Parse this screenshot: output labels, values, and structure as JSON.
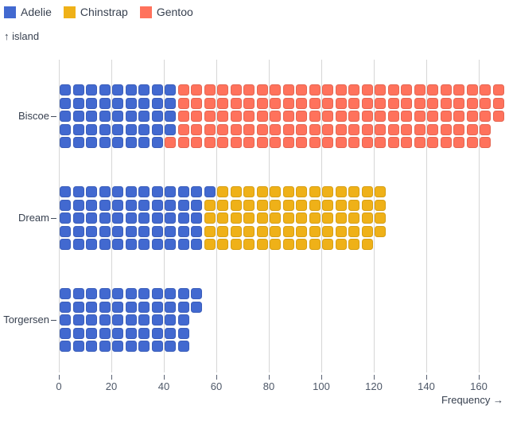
{
  "legend": {
    "items": [
      {
        "label": "Adelie",
        "color": "#4269d0"
      },
      {
        "label": "Chinstrap",
        "color": "#efb118"
      },
      {
        "label": "Gentoo",
        "color": "#ff725c"
      }
    ]
  },
  "chart": {
    "y_axis_title": "↑ island",
    "x_axis_title": "Frequency →"
  },
  "chart_data": {
    "type": "bar",
    "subtype": "waffle-unit-chart",
    "orientation": "horizontal",
    "categories": [
      "Biscoe",
      "Dream",
      "Torgersen"
    ],
    "series": [
      {
        "name": "Adelie",
        "color": "#4269d0",
        "values": [
          44,
          56,
          52
        ]
      },
      {
        "name": "Chinstrap",
        "color": "#efb118",
        "values": [
          0,
          68,
          0
        ]
      },
      {
        "name": "Gentoo",
        "color": "#ff725c",
        "values": [
          124,
          0,
          0
        ]
      }
    ],
    "totals": [
      168,
      124,
      52
    ],
    "x_ticks": [
      0,
      20,
      40,
      60,
      80,
      100,
      120,
      140,
      160
    ],
    "xlabel": "Frequency",
    "ylabel": "island",
    "xlim": [
      0,
      170
    ],
    "unit_value": 1,
    "rows_per_bar": 5,
    "grid": true,
    "legend_position": "top-left",
    "colors": {
      "grid": "#d6d6d6",
      "axis_tick": "#596172",
      "axis_text": "#4e5868",
      "label_text": "#384150"
    }
  }
}
